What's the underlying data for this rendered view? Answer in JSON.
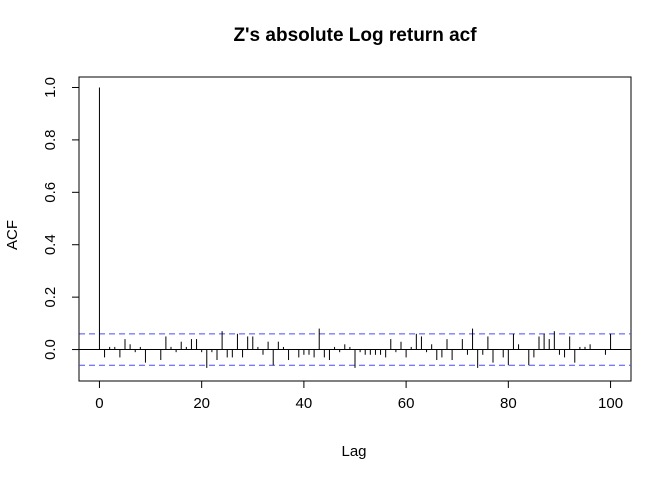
{
  "chart_data": {
    "type": "bar",
    "title": "Z's absolute Log return acf",
    "xlabel": "Lag",
    "ylabel": "ACF",
    "xlim": [
      -4,
      104
    ],
    "ylim": [
      -0.12,
      1.04
    ],
    "x_ticks": [
      0,
      20,
      40,
      60,
      80,
      100
    ],
    "y_ticks": [
      0.0,
      0.2,
      0.4,
      0.6,
      0.8,
      1.0
    ],
    "x_tick_labels": [
      "0",
      "20",
      "40",
      "60",
      "80",
      "100"
    ],
    "y_tick_labels": [
      "0.0",
      "0.2",
      "0.4",
      "0.6",
      "0.8",
      "1.0"
    ],
    "confidence_band": 0.06,
    "colors": {
      "bars": "#000000",
      "zero_line": "#000000",
      "confidence_lines": "#4b4bff",
      "axis": "#000000"
    },
    "lags": [
      0,
      1,
      2,
      3,
      4,
      5,
      6,
      7,
      8,
      9,
      10,
      11,
      12,
      13,
      14,
      15,
      16,
      17,
      18,
      19,
      20,
      21,
      22,
      23,
      24,
      25,
      26,
      27,
      28,
      29,
      30,
      31,
      32,
      33,
      34,
      35,
      36,
      37,
      38,
      39,
      40,
      41,
      42,
      43,
      44,
      45,
      46,
      47,
      48,
      49,
      50,
      51,
      52,
      53,
      54,
      55,
      56,
      57,
      58,
      59,
      60,
      61,
      62,
      63,
      64,
      65,
      66,
      67,
      68,
      69,
      70,
      71,
      72,
      73,
      74,
      75,
      76,
      77,
      78,
      79,
      80,
      81,
      82,
      83,
      84,
      85,
      86,
      87,
      88,
      89,
      90,
      91,
      92,
      93,
      94,
      95,
      96,
      97,
      98,
      99,
      100
    ],
    "values": [
      1.0,
      -0.03,
      0.01,
      0.01,
      -0.03,
      0.04,
      0.02,
      -0.01,
      0.01,
      -0.05,
      0.0,
      0.0,
      -0.04,
      0.05,
      0.01,
      -0.01,
      0.03,
      0.01,
      0.04,
      0.04,
      -0.01,
      -0.07,
      -0.01,
      -0.04,
      0.07,
      -0.03,
      -0.03,
      0.06,
      -0.03,
      0.05,
      0.05,
      0.01,
      -0.02,
      0.03,
      -0.06,
      0.03,
      0.01,
      -0.04,
      0.0,
      -0.03,
      -0.02,
      -0.02,
      -0.03,
      0.08,
      -0.03,
      -0.04,
      0.01,
      -0.01,
      0.02,
      0.01,
      -0.07,
      -0.01,
      -0.02,
      -0.02,
      -0.02,
      -0.02,
      -0.03,
      0.04,
      -0.01,
      0.03,
      -0.03,
      0.01,
      0.06,
      0.05,
      -0.01,
      0.02,
      -0.04,
      -0.03,
      0.04,
      -0.04,
      0.0,
      0.04,
      -0.02,
      0.08,
      -0.07,
      -0.02,
      0.05,
      -0.05,
      0.0,
      -0.03,
      -0.06,
      0.06,
      0.02,
      0.0,
      -0.06,
      -0.03,
      0.05,
      0.06,
      0.04,
      0.07,
      -0.02,
      -0.03,
      0.05,
      -0.05,
      0.01,
      0.01,
      0.02,
      0.0,
      0.0,
      -0.02,
      0.06
    ]
  }
}
